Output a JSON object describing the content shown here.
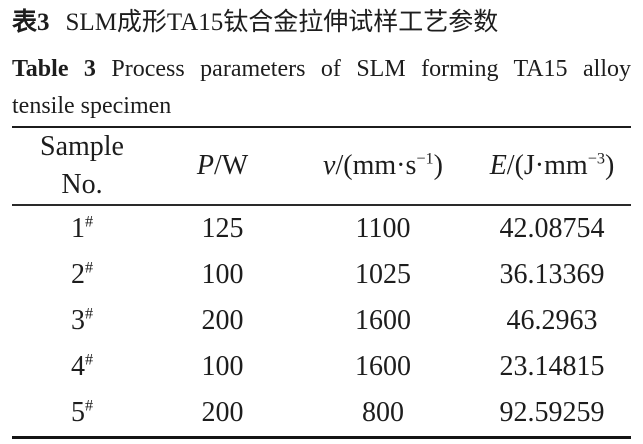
{
  "title": {
    "zh_label": "表3",
    "zh_text": "SLM成形TA15钛合金拉伸试样工艺参数",
    "en_label": "Table 3",
    "en_text_line1": "Process parameters of SLM forming TA15 alloy",
    "en_text_line2": "tensile specimen"
  },
  "table": {
    "headers": {
      "sample_line1": "Sample",
      "sample_line2": "No.",
      "p_symbol": "P",
      "p_unit": "/W",
      "v_symbol": "v",
      "v_unit_pre": "/(mm·s",
      "v_sup": "−1",
      "v_unit_post": ")",
      "e_symbol": "E",
      "e_unit_pre": "/(J·mm",
      "e_sup": "−3",
      "e_unit_post": ")"
    },
    "rows": [
      {
        "no": "1",
        "no_sup": "#",
        "p": "125",
        "v": "1100",
        "e": "42.08754"
      },
      {
        "no": "2",
        "no_sup": "#",
        "p": "100",
        "v": "1025",
        "e": "36.13369"
      },
      {
        "no": "3",
        "no_sup": "#",
        "p": "200",
        "v": "1600",
        "e": "46.2963"
      },
      {
        "no": "4",
        "no_sup": "#",
        "p": "100",
        "v": "1600",
        "e": "23.14815"
      },
      {
        "no": "5",
        "no_sup": "#",
        "p": "200",
        "v": "800",
        "e": "92.59259"
      }
    ]
  },
  "colors": {
    "text": "#1d1d1d",
    "rule": "#1c1c1c",
    "background": "#ffffff"
  }
}
